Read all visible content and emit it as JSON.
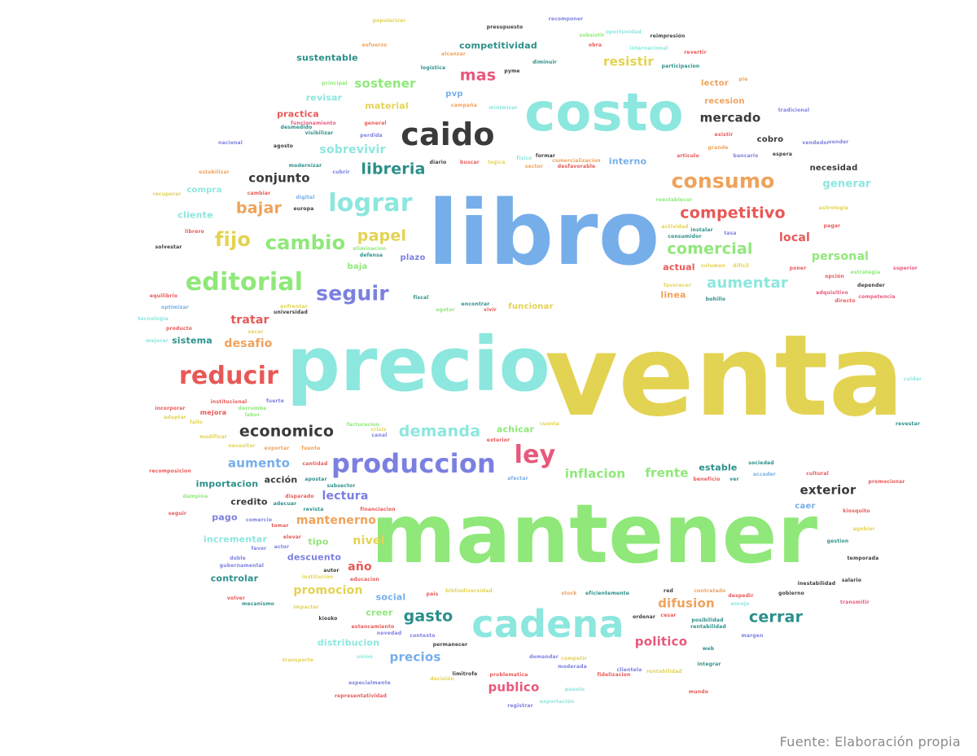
{
  "caption": "Fuente: Elaboración propia",
  "palette": {
    "blue": "#76aeea",
    "yellow": "#e3d352",
    "green": "#8fe879",
    "cyan": "#8ce7de",
    "charcoal": "#3a3a3a",
    "red": "#e85856",
    "orange": "#f0a25a",
    "purple": "#7b80e0",
    "teal": "#2a8f8a",
    "pink": "#e8587c"
  },
  "words": [
    "venta",
    "mantener",
    "libro",
    "precio",
    "costo",
    "cadena",
    "caido",
    "produccion",
    "reducir",
    "editorial",
    "lograr",
    "consumo",
    "ley",
    "seguir",
    "cambio",
    "comercial",
    "competitivo",
    "demanda",
    "gasto",
    "cerrar",
    "economico",
    "aumentar",
    "fijo",
    "papel",
    "bajar",
    "libreria",
    "sostener",
    "mas",
    "resistir",
    "mercado",
    "inflacion",
    "frente",
    "sobrevivir",
    "conjunto",
    "publico",
    "precios",
    "politico",
    "difusion",
    "exterior",
    "aumento",
    "lectura",
    "promocion",
    "personal",
    "local",
    "tratar",
    "desafio",
    "mantenerno",
    "nivel",
    "año",
    "competitividad",
    "sustentable",
    "generar",
    "importacion",
    "controlar",
    "incrementar",
    "distribucion",
    "creer",
    "descuento",
    "credito",
    "acción",
    "estable",
    "achicar",
    "tipo",
    "pago",
    "social",
    "cliente",
    "compra",
    "sistema",
    "material",
    "revisar",
    "practica",
    "interno",
    "necesidad",
    "recesion",
    "lector",
    "cobro",
    "actual",
    "linea",
    "funcionar",
    "plazo",
    "baja",
    "pvp",
    "caer"
  ],
  "small_words": [
    "popularizar",
    "presupuesto",
    "recomponer",
    "reimpresión",
    "subsistir",
    "oportunidad",
    "internacional",
    "obra",
    "revertir",
    "alcanzar",
    "logistica",
    "participacion",
    "diminuir",
    "pyme",
    "principal",
    "esfuerzo",
    "pie",
    "campaña",
    "vender",
    "tradicional",
    "funcionamiento",
    "desmedido",
    "general",
    "visibilizar",
    "perdida",
    "existir",
    "nacional",
    "agosto",
    "grande",
    "espera",
    "bancario",
    "articulo",
    "vendedor",
    "minimizar",
    "diario",
    "buscar",
    "logica",
    "fisico",
    "formar",
    "sector",
    "comercializacion",
    "desfavorable",
    "estabilizar",
    "modernizar",
    "cubrir",
    "recuperar",
    "cambiar",
    "digital",
    "europa",
    "reestablecer",
    "astrologia",
    "solvestar",
    "librero",
    "eliminacion",
    "defensa",
    "instalar",
    "tasa",
    "consumidor",
    "actividad",
    "pagar",
    "poner",
    "superior",
    "difícil",
    "depender",
    "adquisitivo",
    "directo",
    "competencia",
    "volumen",
    "fiscal",
    "estrategia",
    "encontrar",
    "vivir",
    "favorecer",
    "agotar",
    "opción",
    "equilibrio",
    "optimizar",
    "tecnologia",
    "producto",
    "universidad",
    "enfrentar",
    "mejorar",
    "bohillo",
    "sacar",
    "incorporar",
    "institucional",
    "fuerte",
    "derrumbe",
    "labor",
    "adaptar",
    "mejora",
    "fallo",
    "facturacion",
    "crisis",
    "canal",
    "exterior",
    "cuenta",
    "revestar",
    "recomposicion",
    "modificar",
    "necesitar",
    "exportar",
    "cantidad",
    "fuente",
    "beneficio",
    "ver",
    "sociedad",
    "afectar",
    "acceder",
    "cultural",
    "promocionar",
    "dampina",
    "apostar",
    "subsector",
    "disparado",
    "adecuar",
    "revista",
    "financiacion",
    "kiosquito",
    "seguir",
    "comercio",
    "tomar",
    "gestion",
    "elevar",
    "actor",
    "favor",
    "doble",
    "gubernamental",
    "autor",
    "institución",
    "educacion",
    "temporada",
    "salario",
    "inestabilidad",
    "gobierno",
    "volver",
    "mecanismo",
    "impactar",
    "pais",
    "bibliodiversidad",
    "stock",
    "eficientemente",
    "red",
    "contratado",
    "despedir",
    "enrojo",
    "transmitir",
    "kiosko",
    "estancamiento",
    "novedad",
    "contexto",
    "permanecer",
    "ordenar",
    "cesar",
    "posibilidad",
    "rentabilidad",
    "margen",
    "transporte",
    "union",
    "demandar",
    "competir",
    "moderada",
    "web",
    "integrar",
    "especialmente",
    "decisión",
    "limitrofe",
    "problematica",
    "clientela",
    "fidelizacion",
    "rentabilidad",
    "mundo",
    "representatividad",
    "exportación",
    "registrar",
    "puesto",
    "agobiar",
    "cuidar"
  ]
}
